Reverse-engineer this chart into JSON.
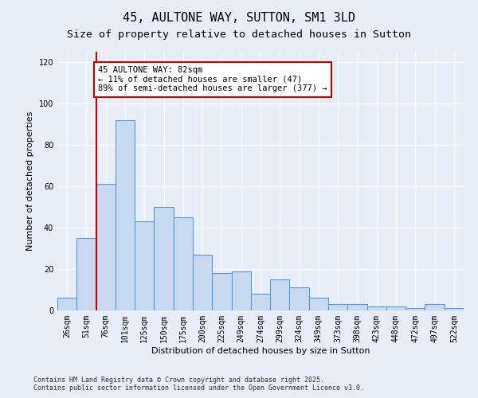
{
  "title": "45, AULTONE WAY, SUTTON, SM1 3LD",
  "subtitle": "Size of property relative to detached houses in Sutton",
  "xlabel": "Distribution of detached houses by size in Sutton",
  "ylabel": "Number of detached properties",
  "categories": [
    "26sqm",
    "51sqm",
    "76sqm",
    "101sqm",
    "125sqm",
    "150sqm",
    "175sqm",
    "200sqm",
    "225sqm",
    "249sqm",
    "274sqm",
    "299sqm",
    "324sqm",
    "349sqm",
    "373sqm",
    "398sqm",
    "423sqm",
    "448sqm",
    "472sqm",
    "497sqm",
    "522sqm"
  ],
  "bar_values": [
    6,
    35,
    61,
    92,
    43,
    50,
    45,
    27,
    18,
    19,
    8,
    15,
    11,
    6,
    3,
    3,
    2,
    2,
    1,
    3,
    1
  ],
  "bar_color": "#c9d9f0",
  "bar_edge_color": "#5b9bd5",
  "bar_linewidth": 0.8,
  "vline_index": 2,
  "vline_color": "#cc0000",
  "annotation_text": "45 AULTONE WAY: 82sqm\n← 11% of detached houses are smaller (47)\n89% of semi-detached houses are larger (377) →",
  "annotation_box_color": "#ffffff",
  "annotation_box_edge": "#cc0000",
  "ylim": [
    0,
    125
  ],
  "yticks": [
    0,
    20,
    40,
    60,
    80,
    100,
    120
  ],
  "background_color": "#e8eef7",
  "plot_bg_color": "#e8eef7",
  "footer": "Contains HM Land Registry data © Crown copyright and database right 2025.\nContains public sector information licensed under the Open Government Licence v3.0.",
  "title_fontsize": 11,
  "subtitle_fontsize": 9.5,
  "xlabel_fontsize": 8,
  "ylabel_fontsize": 8,
  "tick_fontsize": 7,
  "annotation_fontsize": 7.5,
  "footer_fontsize": 6
}
